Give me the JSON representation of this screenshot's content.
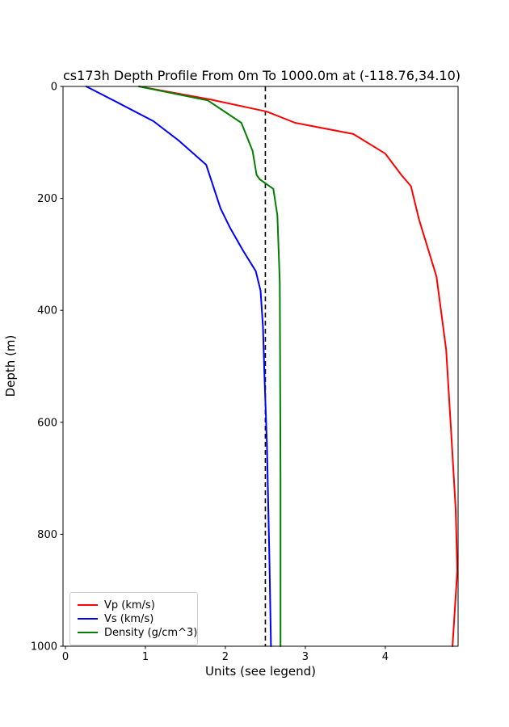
{
  "figure": {
    "title": "cs173h Depth Profile From 0m To 1000.0m at (-118.76,34.10)",
    "xlabel": "Units (see legend)",
    "ylabel": "Depth (m)"
  },
  "chart_data": {
    "type": "line",
    "title": "cs173h Depth Profile From 0m To 1000.0m at (-118.76,34.10)",
    "xlabel": "Units (see legend)",
    "ylabel": "Depth (m)",
    "grid": false,
    "legend_position": "lower left",
    "x_ticks": [
      0,
      1,
      2,
      3,
      4
    ],
    "y_ticks": [
      0,
      200,
      400,
      600,
      800,
      1000
    ],
    "xlim": [
      -0.03,
      4.91
    ],
    "ylim": [
      0,
      1000
    ],
    "y_axis_inverted_depth": true,
    "axis_color": "#000000",
    "reference_line": {
      "x": 2.5,
      "style": "dashed",
      "color": "#000000"
    },
    "series": [
      {
        "id": "vp",
        "name": "Vp (km/s)",
        "color": "#ff0000",
        "points_value_depth": [
          [
            0.92,
            0
          ],
          [
            1.8,
            23
          ],
          [
            2.52,
            45
          ],
          [
            2.87,
            65
          ],
          [
            3.6,
            85
          ],
          [
            4.0,
            120
          ],
          [
            4.2,
            158
          ],
          [
            4.32,
            178
          ],
          [
            4.42,
            237
          ],
          [
            4.64,
            340
          ],
          [
            4.76,
            470
          ],
          [
            4.82,
            610
          ],
          [
            4.88,
            755
          ],
          [
            4.9,
            865
          ],
          [
            4.84,
            1000
          ]
        ]
      },
      {
        "id": "vs",
        "name": "Vs (km/s)",
        "color": "#0000ff",
        "points_value_depth": [
          [
            0.26,
            0
          ],
          [
            0.67,
            30
          ],
          [
            1.1,
            62
          ],
          [
            1.42,
            97
          ],
          [
            1.76,
            140
          ],
          [
            1.94,
            218
          ],
          [
            2.06,
            253
          ],
          [
            2.22,
            293
          ],
          [
            2.38,
            330
          ],
          [
            2.44,
            365
          ],
          [
            2.47,
            430
          ],
          [
            2.49,
            520
          ],
          [
            2.52,
            640
          ],
          [
            2.55,
            840
          ],
          [
            2.57,
            1000
          ]
        ]
      },
      {
        "id": "density",
        "name": "Density (g/cm^3)",
        "color": "#008000",
        "points_value_depth": [
          [
            0.92,
            0
          ],
          [
            1.78,
            25
          ],
          [
            2.2,
            65
          ],
          [
            2.34,
            115
          ],
          [
            2.39,
            158
          ],
          [
            2.43,
            166
          ],
          [
            2.6,
            183
          ],
          [
            2.65,
            230
          ],
          [
            2.68,
            350
          ],
          [
            2.69,
            700
          ],
          [
            2.69,
            1000
          ]
        ]
      }
    ]
  },
  "legend": {
    "items": [
      {
        "label": "Vp (km/s)",
        "color": "#ff0000"
      },
      {
        "label": "Vs (km/s)",
        "color": "#0000ff"
      },
      {
        "label": "Density (g/cm^3)",
        "color": "#008000"
      }
    ]
  }
}
